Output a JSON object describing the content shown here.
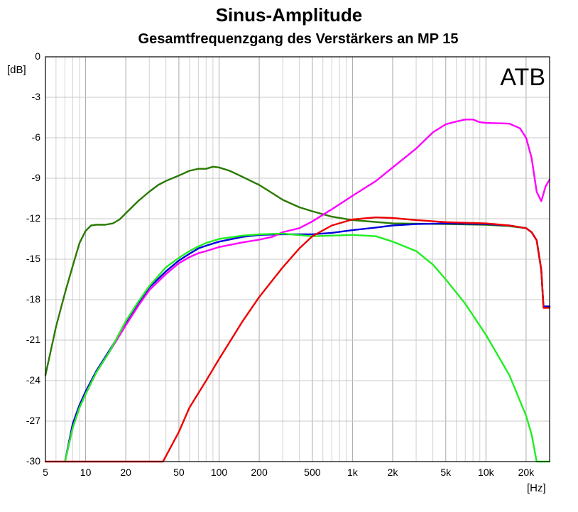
{
  "chart_data": {
    "type": "line",
    "title": "Sinus-Amplitude",
    "subtitle": "Gesamtfrequenzgang des Verstärkers an MP 15",
    "ylabel": "[dB]",
    "xlabel": "[Hz]",
    "annotation": "ATB",
    "xscale": "log",
    "xlim": [
      5,
      30000
    ],
    "ylim": [
      -30,
      0
    ],
    "grid": true,
    "legend": "none",
    "x_ticks": [
      {
        "v": 5,
        "label": "5"
      },
      {
        "v": 10,
        "label": "10"
      },
      {
        "v": 20,
        "label": "20"
      },
      {
        "v": 50,
        "label": "50"
      },
      {
        "v": 100,
        "label": "100"
      },
      {
        "v": 200,
        "label": "200"
      },
      {
        "v": 500,
        "label": "500"
      },
      {
        "v": 1000,
        "label": "1k"
      },
      {
        "v": 2000,
        "label": "2k"
      },
      {
        "v": 5000,
        "label": "5k"
      },
      {
        "v": 10000,
        "label": "10k"
      },
      {
        "v": 20000,
        "label": "20k"
      }
    ],
    "y_ticks": [
      {
        "v": 0,
        "label": "0"
      },
      {
        "v": -3,
        "label": "-3"
      },
      {
        "v": -6,
        "label": "-6"
      },
      {
        "v": -9,
        "label": "-9"
      },
      {
        "v": -12,
        "label": "-12"
      },
      {
        "v": -15,
        "label": "-15"
      },
      {
        "v": -18,
        "label": "-18"
      },
      {
        "v": -21,
        "label": "-21"
      },
      {
        "v": -24,
        "label": "-24"
      },
      {
        "v": -27,
        "label": "-27"
      },
      {
        "v": -30,
        "label": "-30"
      }
    ],
    "series": [
      {
        "color": "#2a7a00",
        "points": [
          [
            5,
            -23.6
          ],
          [
            6,
            -20
          ],
          [
            7,
            -17.5
          ],
          [
            8,
            -15.5
          ],
          [
            9,
            -13.8
          ],
          [
            10,
            -12.9
          ],
          [
            11,
            -12.5
          ],
          [
            12,
            -12.45
          ],
          [
            14,
            -12.45
          ],
          [
            16,
            -12.35
          ],
          [
            18,
            -12.05
          ],
          [
            20,
            -11.6
          ],
          [
            25,
            -10.65
          ],
          [
            30,
            -10
          ],
          [
            35,
            -9.5
          ],
          [
            40,
            -9.2
          ],
          [
            50,
            -8.8
          ],
          [
            60,
            -8.45
          ],
          [
            70,
            -8.3
          ],
          [
            80,
            -8.3
          ],
          [
            90,
            -8.15
          ],
          [
            100,
            -8.2
          ],
          [
            120,
            -8.45
          ],
          [
            150,
            -8.9
          ],
          [
            200,
            -9.5
          ],
          [
            250,
            -10.1
          ],
          [
            300,
            -10.6
          ],
          [
            400,
            -11.15
          ],
          [
            500,
            -11.45
          ],
          [
            700,
            -11.85
          ],
          [
            1000,
            -12.1
          ],
          [
            2000,
            -12.35
          ],
          [
            5000,
            -12.4
          ],
          [
            10000,
            -12.45
          ],
          [
            15000,
            -12.55
          ],
          [
            20000,
            -12.7
          ],
          [
            22000,
            -13
          ],
          [
            24000,
            -13.6
          ],
          [
            26000,
            -15.8
          ],
          [
            27000,
            -18.6
          ],
          [
            30000,
            -18.6
          ]
        ]
      },
      {
        "color": "#0000dd",
        "points": [
          [
            7,
            -30
          ],
          [
            8,
            -27.2
          ],
          [
            9,
            -25.8
          ],
          [
            10,
            -24.8
          ],
          [
            12,
            -23.3
          ],
          [
            15,
            -21.8
          ],
          [
            20,
            -19.8
          ],
          [
            25,
            -18.3
          ],
          [
            30,
            -17.1
          ],
          [
            40,
            -15.9
          ],
          [
            50,
            -15.1
          ],
          [
            60,
            -14.6
          ],
          [
            70,
            -14.2
          ],
          [
            80,
            -14
          ],
          [
            100,
            -13.7
          ],
          [
            150,
            -13.35
          ],
          [
            200,
            -13.2
          ],
          [
            300,
            -13.15
          ],
          [
            500,
            -13.15
          ],
          [
            700,
            -13.05
          ],
          [
            1000,
            -12.85
          ],
          [
            1500,
            -12.65
          ],
          [
            2000,
            -12.5
          ],
          [
            3000,
            -12.4
          ],
          [
            5000,
            -12.35
          ],
          [
            10000,
            -12.4
          ],
          [
            15000,
            -12.5
          ],
          [
            20000,
            -12.7
          ],
          [
            22000,
            -13
          ],
          [
            24000,
            -13.6
          ],
          [
            26000,
            -15.8
          ],
          [
            27000,
            -18.5
          ],
          [
            30000,
            -18.5
          ]
        ]
      },
      {
        "color": "#ff00ff",
        "points": [
          [
            7,
            -30
          ],
          [
            8,
            -27.5
          ],
          [
            9,
            -26
          ],
          [
            10,
            -25
          ],
          [
            12,
            -23.4
          ],
          [
            15,
            -21.9
          ],
          [
            20,
            -19.9
          ],
          [
            25,
            -18.4
          ],
          [
            30,
            -17.3
          ],
          [
            40,
            -16.1
          ],
          [
            50,
            -15.3
          ],
          [
            60,
            -14.85
          ],
          [
            70,
            -14.55
          ],
          [
            80,
            -14.4
          ],
          [
            100,
            -14.1
          ],
          [
            150,
            -13.75
          ],
          [
            200,
            -13.55
          ],
          [
            250,
            -13.35
          ],
          [
            300,
            -13
          ],
          [
            400,
            -12.7
          ],
          [
            500,
            -12.2
          ],
          [
            700,
            -11.3
          ],
          [
            1000,
            -10.3
          ],
          [
            1500,
            -9.2
          ],
          [
            2000,
            -8.2
          ],
          [
            3000,
            -6.8
          ],
          [
            4000,
            -5.6
          ],
          [
            5000,
            -5
          ],
          [
            6000,
            -4.8
          ],
          [
            7000,
            -4.65
          ],
          [
            8000,
            -4.65
          ],
          [
            9000,
            -4.85
          ],
          [
            10000,
            -4.9
          ],
          [
            15000,
            -4.95
          ],
          [
            18000,
            -5.3
          ],
          [
            20000,
            -6
          ],
          [
            22000,
            -7.5
          ],
          [
            24000,
            -10
          ],
          [
            26000,
            -10.7
          ],
          [
            28000,
            -9.6
          ],
          [
            30000,
            -9.1
          ]
        ]
      },
      {
        "color": "#22ee22",
        "points": [
          [
            7,
            -30
          ],
          [
            8,
            -27.5
          ],
          [
            9,
            -26
          ],
          [
            10,
            -25
          ],
          [
            12,
            -23.4
          ],
          [
            15,
            -21.9
          ],
          [
            20,
            -19.6
          ],
          [
            25,
            -18.1
          ],
          [
            30,
            -17
          ],
          [
            40,
            -15.6
          ],
          [
            50,
            -14.9
          ],
          [
            60,
            -14.4
          ],
          [
            70,
            -14.05
          ],
          [
            80,
            -13.8
          ],
          [
            100,
            -13.5
          ],
          [
            150,
            -13.25
          ],
          [
            200,
            -13.15
          ],
          [
            300,
            -13.1
          ],
          [
            500,
            -13.3
          ],
          [
            700,
            -13.25
          ],
          [
            1000,
            -13.2
          ],
          [
            1500,
            -13.3
          ],
          [
            2000,
            -13.7
          ],
          [
            3000,
            -14.4
          ],
          [
            4000,
            -15.4
          ],
          [
            5000,
            -16.5
          ],
          [
            7000,
            -18.3
          ],
          [
            10000,
            -20.6
          ],
          [
            15000,
            -23.6
          ],
          [
            20000,
            -26.6
          ],
          [
            22000,
            -28
          ],
          [
            24000,
            -30
          ],
          [
            30000,
            -30
          ]
        ]
      },
      {
        "color": "#ee0000",
        "points": [
          [
            5,
            -30
          ],
          [
            38,
            -30
          ],
          [
            42,
            -29.2
          ],
          [
            50,
            -27.8
          ],
          [
            60,
            -26
          ],
          [
            80,
            -24
          ],
          [
            100,
            -22.4
          ],
          [
            150,
            -19.6
          ],
          [
            200,
            -17.8
          ],
          [
            300,
            -15.6
          ],
          [
            400,
            -14.2
          ],
          [
            500,
            -13.3
          ],
          [
            700,
            -12.5
          ],
          [
            1000,
            -12.05
          ],
          [
            1500,
            -11.9
          ],
          [
            2000,
            -11.95
          ],
          [
            3000,
            -12.1
          ],
          [
            5000,
            -12.25
          ],
          [
            10000,
            -12.35
          ],
          [
            15000,
            -12.5
          ],
          [
            20000,
            -12.7
          ],
          [
            22000,
            -13
          ],
          [
            24000,
            -13.6
          ],
          [
            26000,
            -15.8
          ],
          [
            27000,
            -18.6
          ],
          [
            30000,
            -18.6
          ]
        ]
      }
    ]
  }
}
